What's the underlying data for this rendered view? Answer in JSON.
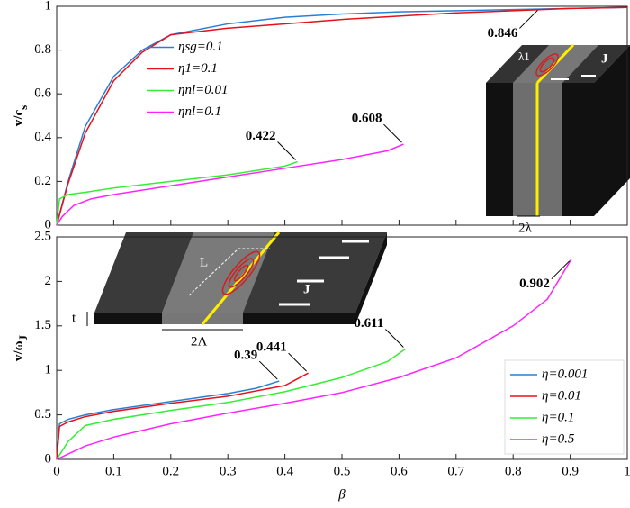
{
  "chart_data": [
    {
      "type": "line",
      "ylabel": "v/c",
      "ylabel_sub": "s",
      "xlim": [
        0,
        1
      ],
      "xticks": [
        0,
        0.1,
        0.2,
        0.3,
        0.4,
        0.5,
        0.6,
        0.7,
        0.8,
        0.9,
        1
      ],
      "ylim": [
        0,
        1
      ],
      "yticks": [
        0,
        0.2,
        0.4,
        0.6,
        0.8,
        1
      ],
      "legend": "center left",
      "series": [
        {
          "name": "ηsg=0.1",
          "color": "#2a7fd4",
          "x": [
            0,
            0.02,
            0.05,
            0.1,
            0.15,
            0.2,
            0.3,
            0.4,
            0.5,
            0.6,
            0.7,
            0.8,
            0.9,
            1
          ],
          "values": [
            0,
            0.2,
            0.45,
            0.68,
            0.8,
            0.87,
            0.92,
            0.95,
            0.965,
            0.975,
            0.98,
            0.985,
            0.99,
            0.995
          ]
        },
        {
          "name": "η1=0.1",
          "color": "#e8101a",
          "x": [
            0,
            0.02,
            0.05,
            0.1,
            0.15,
            0.2,
            0.3,
            0.4,
            0.5,
            0.6,
            0.7,
            0.8,
            0.9,
            1
          ],
          "values": [
            0,
            0.19,
            0.42,
            0.66,
            0.79,
            0.87,
            0.9,
            0.92,
            0.94,
            0.955,
            0.97,
            0.98,
            0.99,
            0.995
          ]
        },
        {
          "name": "ηnl=0.01",
          "color": "#33ee33",
          "x": [
            0,
            0.005,
            0.02,
            0.05,
            0.1,
            0.2,
            0.3,
            0.4,
            0.422
          ],
          "values": [
            0,
            0.12,
            0.14,
            0.15,
            0.17,
            0.2,
            0.23,
            0.27,
            0.29
          ]
        },
        {
          "name": "ηnl=0.1",
          "color": "#ff22ff",
          "x": [
            0,
            0.01,
            0.03,
            0.06,
            0.1,
            0.2,
            0.3,
            0.4,
            0.5,
            0.58,
            0.608
          ],
          "values": [
            0,
            0.04,
            0.09,
            0.12,
            0.14,
            0.18,
            0.22,
            0.26,
            0.3,
            0.34,
            0.37
          ]
        }
      ],
      "annotations": [
        {
          "text": 0.846,
          "x": 0.846,
          "y": 0.99
        },
        {
          "text": 0.422,
          "x": 0.422,
          "y": 0.29
        },
        {
          "text": 0.608,
          "x": 0.608,
          "y": 0.37
        }
      ],
      "inset_labels": [
        "λ1",
        "J",
        "2λ"
      ]
    },
    {
      "type": "line",
      "ylabel": "v/ω",
      "ylabel_sub": "J",
      "xlabel": "β",
      "xlim": [
        0,
        1
      ],
      "xticks": [
        0,
        0.1,
        0.2,
        0.3,
        0.4,
        0.5,
        0.6,
        0.7,
        0.8,
        0.9,
        1
      ],
      "ylim": [
        0,
        2.5
      ],
      "yticks": [
        0,
        0.5,
        1,
        1.5,
        2,
        2.5
      ],
      "legend": "lower right",
      "series": [
        {
          "name": "η=0.001",
          "color": "#2a7fd4",
          "x": [
            0,
            0.005,
            0.02,
            0.05,
            0.1,
            0.2,
            0.3,
            0.35,
            0.39
          ],
          "values": [
            0,
            0.4,
            0.45,
            0.5,
            0.56,
            0.65,
            0.74,
            0.8,
            0.88
          ]
        },
        {
          "name": "η=0.01",
          "color": "#e8101a",
          "x": [
            0,
            0.005,
            0.02,
            0.05,
            0.1,
            0.2,
            0.3,
            0.4,
            0.441
          ],
          "values": [
            0,
            0.37,
            0.42,
            0.48,
            0.54,
            0.63,
            0.71,
            0.83,
            0.97
          ]
        },
        {
          "name": "η=0.1",
          "color": "#33ee33",
          "x": [
            0,
            0.02,
            0.05,
            0.1,
            0.2,
            0.3,
            0.4,
            0.5,
            0.58,
            0.611
          ],
          "values": [
            0,
            0.2,
            0.38,
            0.45,
            0.55,
            0.64,
            0.76,
            0.92,
            1.1,
            1.24
          ]
        },
        {
          "name": "η=0.5",
          "color": "#ff22ff",
          "x": [
            0,
            0.05,
            0.1,
            0.2,
            0.3,
            0.4,
            0.5,
            0.6,
            0.7,
            0.8,
            0.86,
            0.902
          ],
          "values": [
            0,
            0.15,
            0.25,
            0.4,
            0.52,
            0.63,
            0.75,
            0.92,
            1.14,
            1.5,
            1.8,
            2.25
          ]
        }
      ],
      "annotations": [
        {
          "text": 0.39,
          "x": 0.39,
          "y": 0.88
        },
        {
          "text": 0.441,
          "x": 0.441,
          "y": 0.97
        },
        {
          "text": 0.611,
          "x": 0.611,
          "y": 1.24
        },
        {
          "text": 0.902,
          "x": 0.902,
          "y": 2.25
        }
      ],
      "inset_labels": [
        "L",
        "J",
        "t",
        "2Λ"
      ]
    }
  ]
}
